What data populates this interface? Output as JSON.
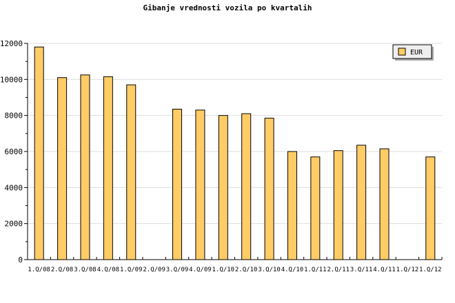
{
  "chart_data": {
    "type": "bar",
    "title": "Gibanje vrednosti vozila po kvartalih",
    "categories": [
      "1.Q/08",
      "2.Q/08",
      "3.Q/08",
      "4.Q/08",
      "1.Q/09",
      "2.Q/09",
      "3.Q/09",
      "4.Q/09",
      "1.Q/10",
      "2.Q/10",
      "3.Q/10",
      "4.Q/10",
      "1.Q/11",
      "2.Q/11",
      "3.Q/11",
      "4.Q/11",
      "1.Q/12",
      "1.Q/12"
    ],
    "series": [
      {
        "name": "EUR",
        "values": [
          11800,
          10100,
          10250,
          10150,
          9700,
          0,
          8350,
          8300,
          8000,
          8100,
          7850,
          6000,
          5700,
          6050,
          6350,
          6150,
          0,
          5700
        ],
        "color": "#FFCC66"
      }
    ],
    "ylim": [
      0,
      12000
    ],
    "yticks": [
      "0",
      "2000",
      "4000",
      "6000",
      "8000",
      "10000",
      "12000"
    ],
    "grid": true,
    "legend": "top-right"
  }
}
